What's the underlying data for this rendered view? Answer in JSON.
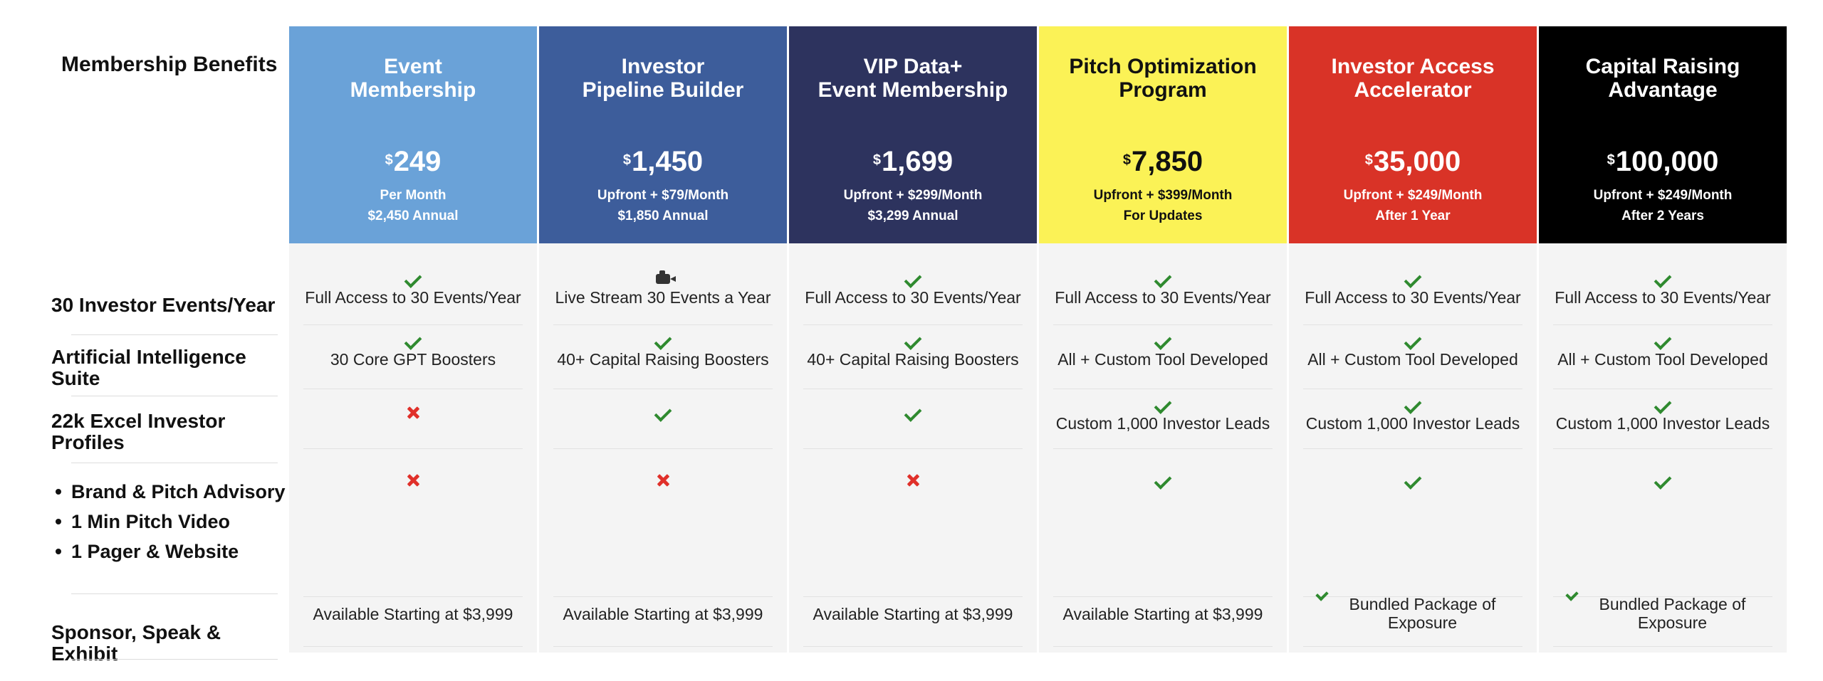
{
  "rows": {
    "header_label": "Membership Benefits",
    "labels": [
      {
        "text": "30 Investor Events/Year"
      },
      {
        "text": "Artificial Intelligence Suite"
      },
      {
        "text": "22k Excel Investor Profiles"
      },
      {
        "bullets": [
          "Brand & Pitch Advisory",
          "1 Min Pitch Video",
          "1 Pager & Website"
        ]
      },
      {
        "text": "Sponsor, Speak & Exhibit"
      }
    ]
  },
  "plans": [
    {
      "name": [
        "Event",
        "Membership"
      ],
      "currency": "$",
      "price": "249",
      "sub1": "Per Month",
      "sub2": "$2,450 Annual",
      "bg": "#6aa2d8",
      "fg": "#ffffff",
      "cells": [
        {
          "icon": "check",
          "text": "Full Access to 30 Events/Year"
        },
        {
          "icon": "check",
          "text": "30 Core GPT Boosters"
        },
        {
          "icon": "cross",
          "text": ""
        },
        {
          "icon": "cross",
          "text": ""
        },
        {
          "icon": "",
          "text": "Available Starting at $3,999"
        }
      ]
    },
    {
      "name": [
        "Investor",
        "Pipeline Builder"
      ],
      "currency": "$",
      "price": "1,450",
      "sub1": "Upfront + $79/Month",
      "sub2": "$1,850 Annual",
      "bg": "#3d5d9b",
      "fg": "#ffffff",
      "cells": [
        {
          "icon": "camera",
          "text": "Live Stream 30 Events a Year"
        },
        {
          "icon": "check",
          "text": "40+ Capital Raising Boosters"
        },
        {
          "icon": "check",
          "text": ""
        },
        {
          "icon": "cross",
          "text": ""
        },
        {
          "icon": "",
          "text": "Available Starting at $3,999"
        }
      ]
    },
    {
      "name": [
        "VIP Data+",
        "Event Membership"
      ],
      "currency": "$",
      "price": "1,699",
      "sub1": "Upfront + $299/Month",
      "sub2": "$3,299 Annual",
      "bg": "#2d335e",
      "fg": "#ffffff",
      "cells": [
        {
          "icon": "check",
          "text": "Full Access to 30 Events/Year"
        },
        {
          "icon": "check",
          "text": "40+ Capital Raising Boosters"
        },
        {
          "icon": "check",
          "text": ""
        },
        {
          "icon": "cross",
          "text": ""
        },
        {
          "icon": "",
          "text": "Available Starting at $3,999"
        }
      ]
    },
    {
      "name": [
        "Pitch Optimization",
        "Program"
      ],
      "currency": "$",
      "price": "7,850",
      "sub1": "Upfront + $399/Month",
      "sub2": "For Updates",
      "bg": "#fbf256",
      "fg": "#111111",
      "cells": [
        {
          "icon": "check",
          "text": "Full Access to 30 Events/Year"
        },
        {
          "icon": "check",
          "text": "All + Custom Tool Developed"
        },
        {
          "icon": "check",
          "text": "Custom 1,000 Investor Leads"
        },
        {
          "icon": "check",
          "text": ""
        },
        {
          "icon": "",
          "text": "Available Starting at $3,999"
        }
      ]
    },
    {
      "name": [
        "Investor Access",
        "Accelerator"
      ],
      "currency": "$",
      "price": "35,000",
      "sub1": "Upfront + $249/Month",
      "sub2": "After 1 Year",
      "bg": "#d93327",
      "fg": "#ffffff",
      "cells": [
        {
          "icon": "check",
          "text": "Full Access to 30 Events/Year"
        },
        {
          "icon": "check",
          "text": "All + Custom Tool Developed"
        },
        {
          "icon": "check",
          "text": "Custom 1,000 Investor Leads"
        },
        {
          "icon": "check",
          "text": ""
        },
        {
          "icon": "check-inline",
          "text": "Bundled Package of Exposure"
        }
      ]
    },
    {
      "name": [
        "Capital Raising",
        "Advantage"
      ],
      "currency": "$",
      "price": "100,000",
      "sub1": "Upfront + $249/Month",
      "sub2": "After 2 Years",
      "bg": "#000000",
      "fg": "#ffffff",
      "cells": [
        {
          "icon": "check",
          "text": "Full Access to 30 Events/Year"
        },
        {
          "icon": "check",
          "text": "All + Custom Tool Developed"
        },
        {
          "icon": "check",
          "text": "Custom 1,000 Investor Leads"
        },
        {
          "icon": "check",
          "text": ""
        },
        {
          "icon": "check-inline",
          "text": "Bundled Package of Exposure"
        }
      ]
    }
  ]
}
